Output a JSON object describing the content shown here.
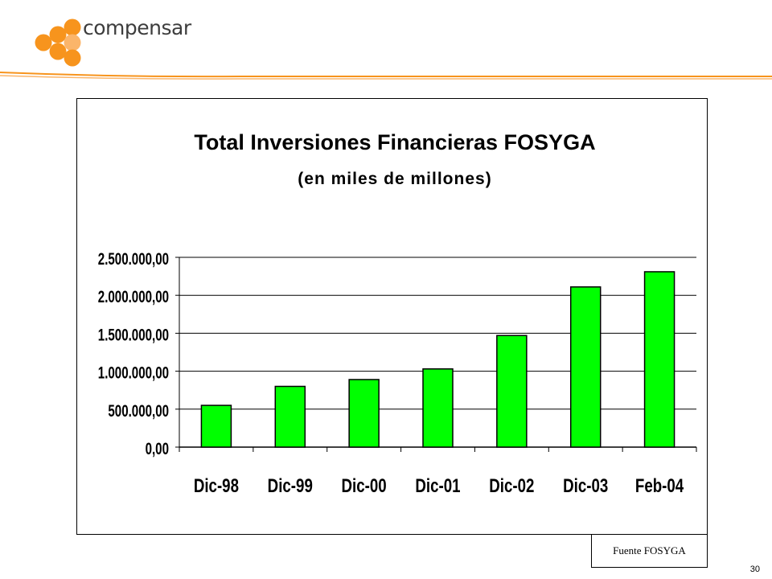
{
  "brand": {
    "logo_text": "compensar",
    "accent_color": "#f7941d",
    "accent_color_light": "#fbb56a"
  },
  "chart_data": {
    "type": "bar",
    "title": "Total Inversiones Financieras FOSYGA",
    "subtitle": "(en miles de millones)",
    "categories": [
      "Dic-98",
      "Dic-99",
      "Dic-00",
      "Dic-01",
      "Dic-02",
      "Dic-03",
      "Feb-04"
    ],
    "values": [
      550000,
      800000,
      890000,
      1030000,
      1470000,
      2110000,
      2310000
    ],
    "ylim": [
      0,
      2500000
    ],
    "y_ticks": [
      0,
      500000,
      1000000,
      1500000,
      2000000,
      2500000
    ],
    "y_tick_labels": [
      "0,00",
      "500.000,00",
      "1.000.000,00",
      "1.500.000,00",
      "2.000.000,00",
      "2.500.000,00"
    ],
    "grid": true,
    "legend": "none",
    "bar_color": "#00ff00",
    "bar_edge_color": "#000000"
  },
  "source_label": "Fuente FOSYGA",
  "page_number": "30"
}
